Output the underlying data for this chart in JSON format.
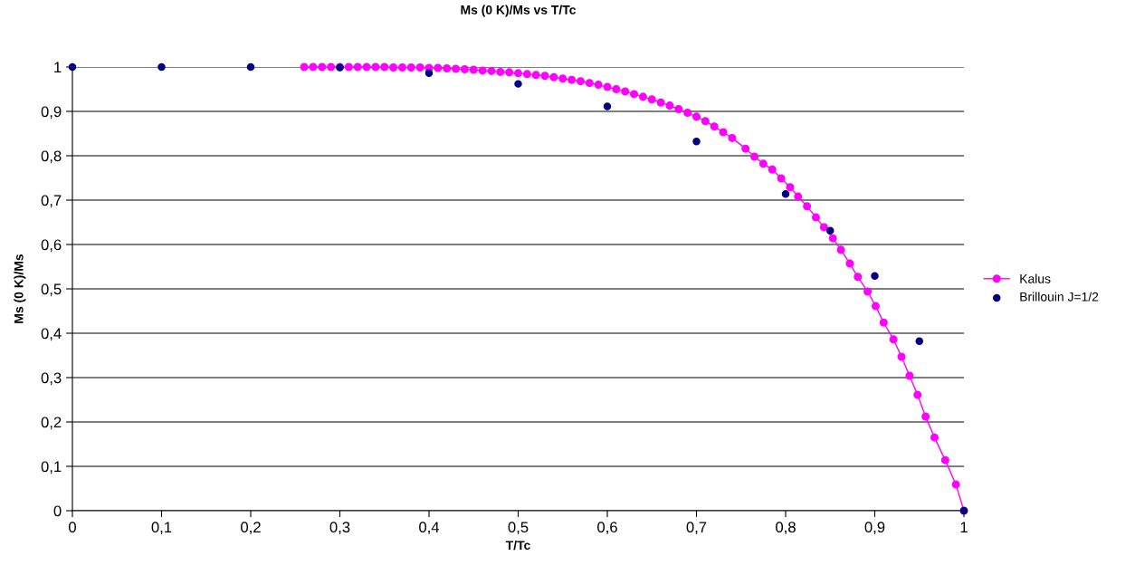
{
  "chart_data": {
    "type": "line",
    "title": "Ms (0 K)/Ms vs T/Tc",
    "xlabel": "T/Tc",
    "ylabel": "Ms (0 K)/Ms",
    "xlim": [
      0,
      1
    ],
    "ylim": [
      0,
      1
    ],
    "xticks": [
      0,
      {
        "value": 0.1,
        "label": "0,1"
      },
      {
        "value": 0.2,
        "label": "0,2"
      },
      {
        "value": 0.3,
        "label": "0,3"
      },
      {
        "value": 0.4,
        "label": "0,4"
      },
      {
        "value": 0.5,
        "label": "0,5"
      },
      {
        "value": 0.6,
        "label": "0,6"
      },
      {
        "value": 0.7,
        "label": "0,7"
      },
      {
        "value": 0.8,
        "label": "0,8"
      },
      {
        "value": 0.9,
        "label": "0,9"
      },
      1
    ],
    "yticks": [
      0,
      {
        "value": 0.1,
        "label": "0,1"
      },
      {
        "value": 0.2,
        "label": "0,2"
      },
      {
        "value": 0.3,
        "label": "0,3"
      },
      {
        "value": 0.4,
        "label": "0,4"
      },
      {
        "value": 0.5,
        "label": "0,5"
      },
      {
        "value": 0.6,
        "label": "0,6"
      },
      {
        "value": 0.7,
        "label": "0,7"
      },
      {
        "value": 0.8,
        "label": "0,8"
      },
      {
        "value": 0.9,
        "label": "0,9"
      },
      1
    ],
    "grid": "y",
    "legend": "right",
    "marker": "circle",
    "series": [
      {
        "name": "Kalus",
        "type": "line",
        "color": "#ff00ff",
        "line_style": "solid",
        "x": [
          0.26,
          0.27,
          0.28,
          0.29,
          0.3,
          0.31,
          0.32,
          0.33,
          0.34,
          0.35,
          0.36,
          0.37,
          0.38,
          0.39,
          0.4,
          0.41,
          0.42,
          0.43,
          0.44,
          0.45,
          0.46,
          0.47,
          0.48,
          0.49,
          0.5,
          0.51,
          0.52,
          0.53,
          0.54,
          0.55,
          0.56,
          0.57,
          0.58,
          0.59,
          0.6,
          0.61,
          0.62,
          0.63,
          0.64,
          0.65,
          0.66,
          0.67,
          0.68,
          0.69,
          0.7,
          0.71,
          0.72,
          0.73,
          0.74,
          0.755,
          0.765,
          0.775,
          0.785,
          0.795,
          0.805,
          0.814,
          0.824,
          0.834,
          0.843,
          0.853,
          0.862,
          0.872,
          0.881,
          0.892,
          0.901,
          0.91,
          0.921,
          0.93,
          0.939,
          0.948,
          0.957,
          0.967,
          0.979,
          0.991,
          1.0
        ],
        "values": [
          1.0,
          1.0,
          1.0,
          1.0,
          1.0,
          1.0,
          1.0,
          1.0,
          1.0,
          1.0,
          0.999,
          0.999,
          0.999,
          0.999,
          0.998,
          0.998,
          0.997,
          0.996,
          0.995,
          0.994,
          0.992,
          0.991,
          0.989,
          0.988,
          0.986,
          0.984,
          0.982,
          0.98,
          0.977,
          0.974,
          0.971,
          0.968,
          0.964,
          0.96,
          0.955,
          0.95,
          0.945,
          0.939,
          0.933,
          0.927,
          0.92,
          0.913,
          0.905,
          0.897,
          0.888,
          0.878,
          0.866,
          0.853,
          0.84,
          0.816,
          0.798,
          0.782,
          0.769,
          0.749,
          0.729,
          0.708,
          0.686,
          0.661,
          0.639,
          0.614,
          0.588,
          0.557,
          0.527,
          0.494,
          0.461,
          0.424,
          0.386,
          0.347,
          0.304,
          0.261,
          0.212,
          0.165,
          0.114,
          0.059,
          0.0
        ]
      },
      {
        "name": "Brillouin J=1/2",
        "type": "scatter",
        "color": "#000080",
        "x": [
          0,
          0.1,
          0.2,
          0.3,
          0.4,
          0.5,
          0.6,
          0.7,
          0.8,
          0.85,
          0.9,
          0.95,
          1.0
        ],
        "values": [
          1.0,
          1.0,
          1.0,
          0.999,
          0.986,
          0.962,
          0.911,
          0.832,
          0.714,
          0.631,
          0.529,
          0.382,
          0.0
        ]
      }
    ]
  }
}
